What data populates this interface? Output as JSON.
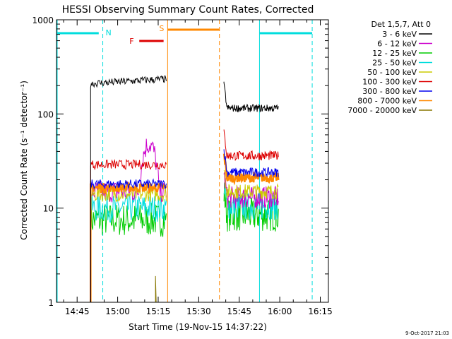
{
  "chart_data": {
    "type": "line",
    "title": "HESSI Observing Summary Count Rates, Corrected",
    "xlabel": "Start Time (19-Nov-15 14:37:22)",
    "ylabel": "Corrected Count Rate (s⁻¹ detector⁻¹)",
    "y_scale": "log",
    "ylim": [
      1,
      1000
    ],
    "xlim": [
      "14:37:22",
      "16:18:00"
    ],
    "x_ticks": [
      "14:45",
      "15:00",
      "15:15",
      "15:30",
      "15:45",
      "16:00",
      "16:15"
    ],
    "y_ticks": [
      "1",
      "10",
      "100",
      "1000"
    ],
    "legend_header": "Det 1,5,7, Att 0",
    "legend_position": "right",
    "series": [
      {
        "name": "3 - 6 keV",
        "color": "#000000",
        "level": 210,
        "level2": 115,
        "noise": 0.04
      },
      {
        "name": "6 - 12 keV",
        "color": "#cc00cc",
        "level": 15,
        "level2": 13,
        "noise": 0.12
      },
      {
        "name": "12 - 25 keV",
        "color": "#00cc00",
        "level": 7.5,
        "level2": 8.5,
        "noise": 0.18
      },
      {
        "name": "25 - 50 keV",
        "color": "#00dddd",
        "level": 10,
        "level2": 10.5,
        "noise": 0.15
      },
      {
        "name": "50 - 100 keV",
        "color": "#cccc00",
        "level": 14,
        "level2": 15,
        "noise": 0.08
      },
      {
        "name": "100 - 300 keV",
        "color": "#dd0000",
        "level": 29,
        "level2": 36,
        "noise": 0.05
      },
      {
        "name": "300 - 800 keV",
        "color": "#0000ee",
        "level": 18,
        "level2": 24,
        "noise": 0.05
      },
      {
        "name": "800 - 7000 keV",
        "color": "#ff8800",
        "level": 16.5,
        "level2": 21,
        "noise": 0.05
      },
      {
        "name": "7000 - 20000 keV",
        "color": "#887700",
        "level": 1,
        "level2": 1,
        "noise": 0
      }
    ],
    "observing_flags": [
      {
        "label": "N",
        "color": "#00dddd"
      },
      {
        "label": "F",
        "color": "#dd0000"
      },
      {
        "label": "S",
        "color": "#ff8800"
      }
    ],
    "timestamp": "9-Oct-2017 21:03"
  }
}
